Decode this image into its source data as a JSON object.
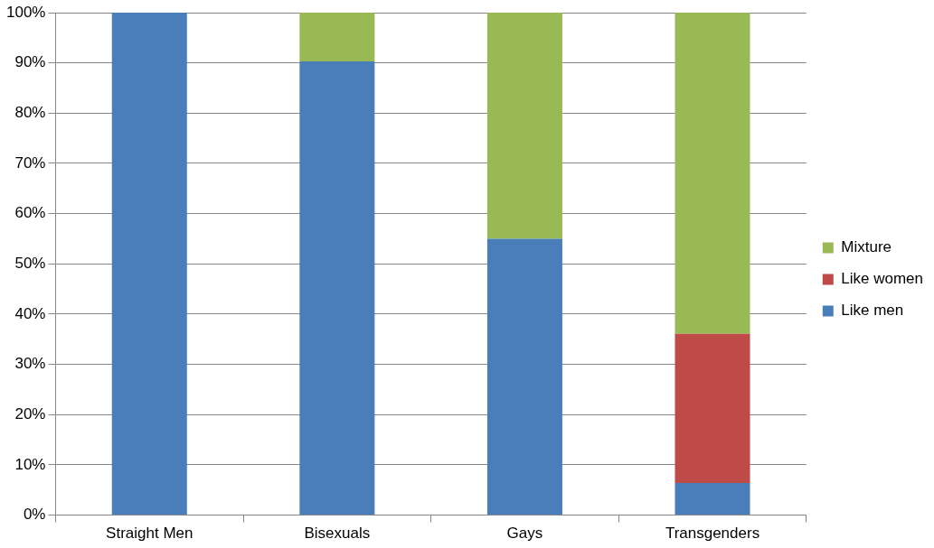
{
  "chart_data": {
    "type": "bar",
    "stacked": true,
    "categories": [
      "Straight Men",
      "Bisexuals",
      "Gays",
      "Transgenders"
    ],
    "series": [
      {
        "name": "Like men",
        "color": "#4a7ebb",
        "values": [
          100,
          90.3,
          55,
          6.4
        ]
      },
      {
        "name": "Like women",
        "color": "#be4b48",
        "values": [
          0,
          0,
          0,
          29.7
        ]
      },
      {
        "name": "Mixture",
        "color": "#98b954",
        "values": [
          0,
          9.7,
          45,
          63.9
        ]
      }
    ],
    "ylim": [
      0,
      100
    ],
    "yticks": [
      {
        "value": 0,
        "label": "0%"
      },
      {
        "value": 10,
        "label": "10%"
      },
      {
        "value": 20,
        "label": "20%"
      },
      {
        "value": 30,
        "label": "30%"
      },
      {
        "value": 40,
        "label": "40%"
      },
      {
        "value": 50,
        "label": "50%"
      },
      {
        "value": 60,
        "label": "60%"
      },
      {
        "value": 70,
        "label": "70%"
      },
      {
        "value": 80,
        "label": "80%"
      },
      {
        "value": 90,
        "label": "90%"
      },
      {
        "value": 100,
        "label": "100%"
      }
    ],
    "grid": "y",
    "legend": "right"
  }
}
